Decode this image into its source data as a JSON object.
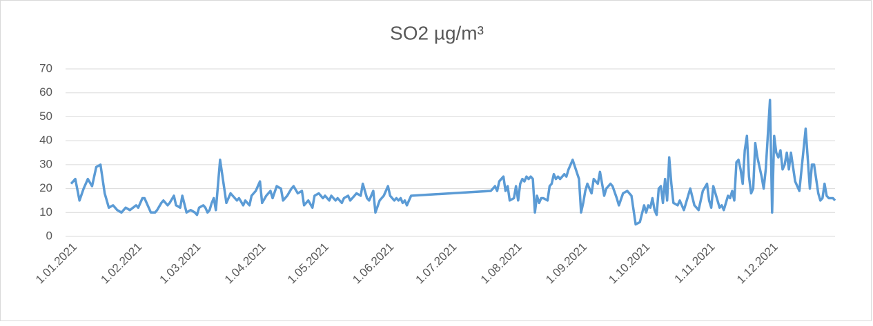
{
  "chart_data": {
    "type": "line",
    "title": "SO2 µg/m³",
    "x": [
      "1.01.2021",
      "3.01.2021",
      "5.01.2021",
      "7.01.2021",
      "9.01.2021",
      "11.01.2021",
      "13.01.2021",
      "15.01.2021",
      "17.01.2021",
      "19.01.2021",
      "21.01.2021",
      "23.01.2021",
      "25.01.2021",
      "27.01.2021",
      "29.01.2021",
      "1.02.2021",
      "2.02.2021",
      "4.02.2021",
      "5.02.2021",
      "7.02.2021",
      "8.02.2021",
      "10.02.2021",
      "11.02.2021",
      "13.02.2021",
      "14.02.2021",
      "16.02.2021",
      "17.02.2021",
      "19.02.2021",
      "20.02.2021",
      "22.02.2021",
      "23.02.2021",
      "25.02.2021",
      "27.02.2021",
      "1.03.2021",
      "2.03.2021",
      "3.03.2021",
      "5.03.2021",
      "6.03.2021",
      "7.03.2021",
      "8.03.2021",
      "9.03.2021",
      "10.03.2021",
      "11.03.2021",
      "13.03.2021",
      "15.03.2021",
      "16.03.2021",
      "18.03.2021",
      "19.03.2021",
      "21.03.2021",
      "22.03.2021",
      "24.03.2021",
      "25.03.2021",
      "27.03.2021",
      "28.03.2021",
      "30.03.2021",
      "1.04.2021",
      "2.04.2021",
      "4.04.2021",
      "6.04.2021",
      "7.04.2021",
      "9.04.2021",
      "11.04.2021",
      "12.04.2021",
      "14.04.2021",
      "16.04.2021",
      "17.04.2021",
      "19.04.2021",
      "21.04.2021",
      "22.04.2021",
      "24.04.2021",
      "26.04.2021",
      "27.04.2021",
      "29.04.2021",
      "1.05.2021",
      "2.05.2021",
      "4.05.2021",
      "5.05.2021",
      "7.05.2021",
      "8.05.2021",
      "10.05.2021",
      "11.05.2021",
      "13.05.2021",
      "14.05.2021",
      "16.05.2021",
      "17.05.2021",
      "19.05.2021",
      "20.05.2021",
      "22.05.2021",
      "23.05.2021",
      "25.05.2021",
      "26.05.2021",
      "28.05.2021",
      "30.05.2021",
      "1.06.2021",
      "2.06.2021",
      "3.06.2021",
      "4.06.2021",
      "5.06.2021",
      "6.06.2021",
      "7.06.2021",
      "8.06.2021",
      "9.06.2021",
      "10.06.2021",
      "11.06.2021",
      "12.06.2021",
      "20.07.2021",
      "21.07.2021",
      "22.07.2021",
      "23.07.2021",
      "24.07.2021",
      "25.07.2021",
      "26.07.2021",
      "27.07.2021",
      "28.07.2021",
      "29.07.2021",
      "31.07.2021",
      "1.08.2021",
      "2.08.2021",
      "3.08.2021",
      "4.08.2021",
      "5.08.2021",
      "6.08.2021",
      "7.08.2021",
      "8.08.2021",
      "9.08.2021",
      "10.08.2021",
      "11.08.2021",
      "12.08.2021",
      "13.08.2021",
      "14.08.2021",
      "16.08.2021",
      "17.08.2021",
      "18.08.2021",
      "19.08.2021",
      "20.08.2021",
      "21.08.2021",
      "22.08.2021",
      "24.08.2021",
      "25.08.2021",
      "26.08.2021",
      "27.08.2021",
      "28.08.2021",
      "31.08.2021",
      "1.09.2021",
      "2.09.2021",
      "3.09.2021",
      "4.09.2021",
      "6.09.2021",
      "7.09.2021",
      "9.09.2021",
      "10.09.2021",
      "12.09.2021",
      "13.09.2021",
      "15.09.2021",
      "16.09.2021",
      "18.09.2021",
      "19.09.2021",
      "21.09.2021",
      "23.09.2021",
      "25.09.2021",
      "27.09.2021",
      "29.09.2021",
      "1.10.2021",
      "2.10.2021",
      "3.10.2021",
      "4.10.2021",
      "5.10.2021",
      "6.10.2021",
      "7.10.2021",
      "8.10.2021",
      "9.10.2021",
      "10.10.2021",
      "11.10.2021",
      "12.10.2021",
      "13.10.2021",
      "14.10.2021",
      "15.10.2021",
      "17.10.2021",
      "18.10.2021",
      "20.10.2021",
      "21.10.2021",
      "23.10.2021",
      "25.10.2021",
      "27.10.2021",
      "29.10.2021",
      "31.10.2021",
      "1.11.2021",
      "2.11.2021",
      "3.11.2021",
      "5.11.2021",
      "6.11.2021",
      "7.11.2021",
      "8.11.2021",
      "10.11.2021",
      "11.11.2021",
      "12.11.2021",
      "13.11.2021",
      "14.11.2021",
      "15.11.2021",
      "16.11.2021",
      "17.11.2021",
      "18.11.2021",
      "19.11.2021",
      "20.11.2021",
      "21.11.2021",
      "22.11.2021",
      "23.11.2021",
      "24.11.2021",
      "26.11.2021",
      "27.11.2021",
      "28.11.2021",
      "30.11.2021",
      "1.12.2021",
      "2.12.2021",
      "3.12.2021",
      "4.12.2021",
      "5.12.2021",
      "6.12.2021",
      "7.12.2021",
      "8.12.2021",
      "9.12.2021",
      "10.12.2021",
      "12.12.2021",
      "14.12.2021",
      "17.12.2021",
      "19.12.2021",
      "20.12.2021",
      "21.12.2021",
      "23.12.2021",
      "24.12.2021",
      "25.12.2021",
      "26.12.2021",
      "27.12.2021",
      "28.12.2021",
      "30.12.2021",
      "31.12.2021"
    ],
    "series": [
      {
        "name": "SO2",
        "color": "#5b9bd5",
        "values": [
          22,
          24,
          15,
          20,
          24,
          21,
          29,
          30,
          18,
          12,
          13,
          11,
          10,
          12,
          11,
          13,
          12,
          16,
          16,
          12,
          10,
          10,
          11,
          14,
          15,
          13,
          14,
          17,
          13,
          12,
          17,
          10,
          11,
          10,
          9,
          12,
          13,
          12,
          10,
          11,
          14,
          16,
          11,
          32,
          20,
          14,
          18,
          17,
          15,
          16,
          13,
          15,
          13,
          17,
          19,
          23,
          14,
          17,
          19,
          16,
          21,
          20,
          15,
          17,
          20,
          21,
          18,
          19,
          13,
          15,
          12,
          17,
          18,
          16,
          17,
          15,
          17,
          15,
          16,
          14,
          16,
          17,
          15,
          17,
          18,
          17,
          22,
          16,
          15,
          19,
          10,
          15,
          17,
          21,
          17,
          16,
          15,
          16,
          15,
          16,
          14,
          15,
          13,
          15,
          17,
          19,
          20,
          21,
          19,
          23,
          24,
          25,
          19,
          21,
          15,
          16,
          21,
          15,
          22,
          24,
          23,
          25,
          24,
          25,
          24,
          10,
          17,
          14,
          16,
          16,
          15,
          21,
          22,
          26,
          24,
          25,
          24,
          26,
          25,
          28,
          30,
          32,
          24,
          10,
          14,
          19,
          22,
          18,
          24,
          22,
          27,
          17,
          20,
          22,
          21,
          16,
          13,
          18,
          19,
          17,
          5,
          6,
          13,
          10,
          13,
          12,
          16,
          11,
          9,
          20,
          21,
          14,
          24,
          15,
          33,
          22,
          14,
          13,
          15,
          11,
          14,
          20,
          13,
          11,
          19,
          22,
          15,
          12,
          21,
          15,
          12,
          13,
          11,
          17,
          16,
          19,
          15,
          31,
          32,
          28,
          22,
          36,
          42,
          25,
          18,
          20,
          39,
          33,
          25,
          20,
          28,
          57,
          10,
          42,
          35,
          33,
          36,
          28,
          30,
          35,
          28,
          35,
          23,
          19,
          45,
          20,
          30,
          30,
          18,
          15,
          16,
          22,
          17,
          16,
          16,
          15
        ]
      }
    ],
    "xlim": [
      "1.01.2021",
      "31.12.2021"
    ],
    "xticks": [
      "1.01.2021",
      "1.02.2021",
      "1.03.2021",
      "1.04.2021",
      "1.05.2021",
      "1.06.2021",
      "1.07.2021",
      "1.08.2021",
      "1.09.2021",
      "1.10.2021",
      "1.11.2021",
      "1.12.2021"
    ],
    "ylim": [
      0,
      70
    ],
    "yticks": [
      0,
      10,
      20,
      30,
      40,
      50,
      60,
      70
    ],
    "grid": true
  }
}
